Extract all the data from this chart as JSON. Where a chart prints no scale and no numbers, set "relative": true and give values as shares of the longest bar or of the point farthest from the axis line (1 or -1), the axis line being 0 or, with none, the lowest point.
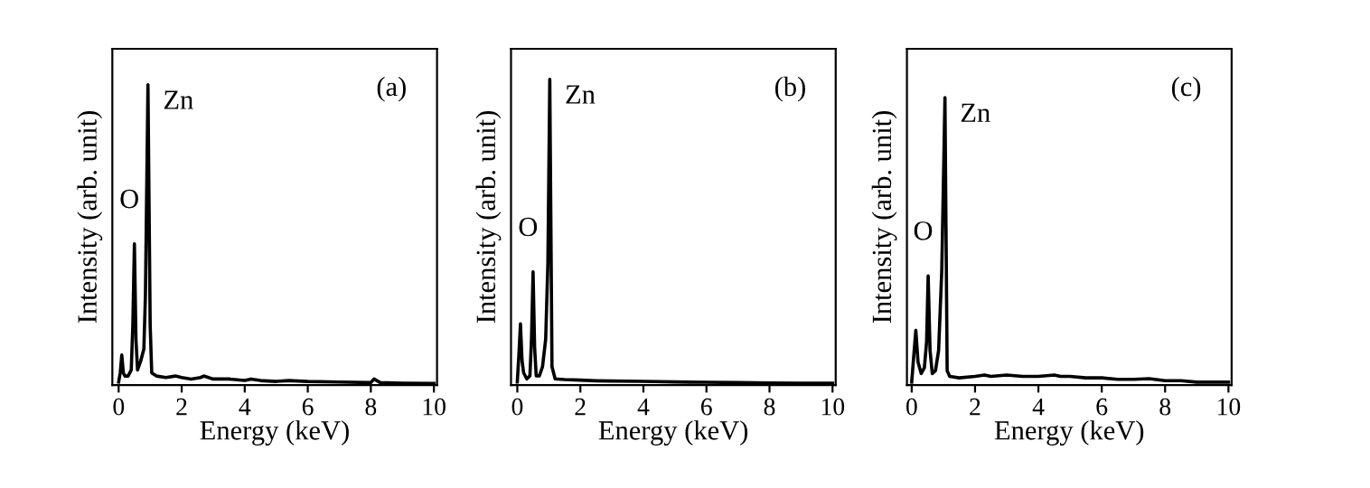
{
  "chart_data": [
    {
      "type": "line",
      "relative": true,
      "xlabel": "Energy (keV)",
      "ylabel": "Intensity (arb. unit)",
      "xlim": [
        -0.2,
        10.1
      ],
      "xticks": [
        0,
        2,
        4,
        6,
        8,
        10
      ],
      "tick_labels": "x",
      "annotations": [
        "(a)",
        {
          "text": "Zn",
          "x": 0.93,
          "y": 1
        },
        {
          "text": "O",
          "x": 0.5,
          "y": 0.47
        }
      ],
      "series": [
        {
          "color": "#000000",
          "x": [
            0,
            0.05,
            0.1,
            0.15,
            0.2,
            0.3,
            0.4,
            0.45,
            0.5,
            0.55,
            0.6,
            0.7,
            0.8,
            0.85,
            0.93,
            1.0,
            1.05,
            1.2,
            1.5,
            1.8,
            2.0,
            2.3,
            2.6,
            2.7,
            3.0,
            3.5,
            4.0,
            4.2,
            4.5,
            5.0,
            5.4,
            6.0,
            7.0,
            8.0,
            8.1,
            8.3,
            9.0,
            10.0
          ],
          "values": [
            0.01,
            0.04,
            0.1,
            0.04,
            0.03,
            0.03,
            0.05,
            0.2,
            0.47,
            0.15,
            0.05,
            0.08,
            0.12,
            0.3,
            1,
            0.2,
            0.04,
            0.03,
            0.025,
            0.03,
            0.025,
            0.02,
            0.025,
            0.03,
            0.02,
            0.02,
            0.015,
            0.02,
            0.015,
            0.012,
            0.015,
            0.012,
            0.01,
            0.008,
            0.02,
            0.008,
            0.006,
            0.005
          ]
        }
      ]
    },
    {
      "type": "line",
      "relative": true,
      "xlabel": "Energy (keV)",
      "ylabel": "Intensity (arb. unit)",
      "xlim": [
        -0.2,
        10.1
      ],
      "xticks": [
        0,
        2,
        4,
        6,
        8,
        10
      ],
      "tick_labels": "x",
      "annotations": [
        "(b)",
        {
          "text": "Zn",
          "x": 1.03,
          "y": 1
        },
        {
          "text": "O",
          "x": 0.5,
          "y": 0.37
        }
      ],
      "series": [
        {
          "color": "#000000",
          "x": [
            0,
            0.05,
            0.1,
            0.15,
            0.2,
            0.3,
            0.4,
            0.45,
            0.5,
            0.55,
            0.6,
            0.7,
            0.8,
            0.9,
            0.97,
            1.03,
            1.1,
            1.2,
            1.5,
            2.0,
            2.5,
            3.0,
            4.0,
            5.0,
            6.0,
            7.0,
            8.0,
            9.0,
            10.0
          ],
          "values": [
            0.01,
            0.1,
            0.2,
            0.08,
            0.04,
            0.02,
            0.03,
            0.15,
            0.37,
            0.12,
            0.03,
            0.03,
            0.06,
            0.15,
            0.4,
            1,
            0.06,
            0.02,
            0.018,
            0.016,
            0.014,
            0.013,
            0.012,
            0.01,
            0.009,
            0.008,
            0.007,
            0.006,
            0.006
          ]
        }
      ]
    },
    {
      "type": "line",
      "relative": true,
      "xlabel": "Energy (keV)",
      "ylabel": "Intensity (arb. unit)",
      "xlim": [
        -0.15,
        10.1
      ],
      "xticks": [
        0,
        2,
        4,
        6,
        8,
        10
      ],
      "tick_labels": "x",
      "annotations": [
        "(c)",
        {
          "text": "Zn",
          "x": 1.05,
          "y": 1
        },
        {
          "text": "O",
          "x": 0.52,
          "y": 0.38
        }
      ],
      "series": [
        {
          "color": "#000000",
          "x": [
            0,
            0.05,
            0.13,
            0.2,
            0.3,
            0.4,
            0.47,
            0.52,
            0.58,
            0.65,
            0.75,
            0.85,
            0.95,
            1.05,
            1.12,
            1.2,
            1.5,
            2.0,
            2.3,
            2.5,
            3.0,
            3.5,
            4.0,
            4.5,
            4.7,
            5.0,
            5.5,
            6.0,
            6.5,
            7.0,
            7.5,
            8.0,
            8.5,
            9.0,
            9.5,
            10.0
          ],
          "values": [
            0.01,
            0.08,
            0.19,
            0.08,
            0.04,
            0.06,
            0.15,
            0.38,
            0.12,
            0.04,
            0.05,
            0.12,
            0.4,
            1,
            0.05,
            0.03,
            0.025,
            0.03,
            0.035,
            0.03,
            0.035,
            0.03,
            0.03,
            0.035,
            0.03,
            0.03,
            0.025,
            0.025,
            0.02,
            0.02,
            0.022,
            0.015,
            0.015,
            0.01,
            0.01,
            0.01
          ]
        }
      ]
    }
  ]
}
